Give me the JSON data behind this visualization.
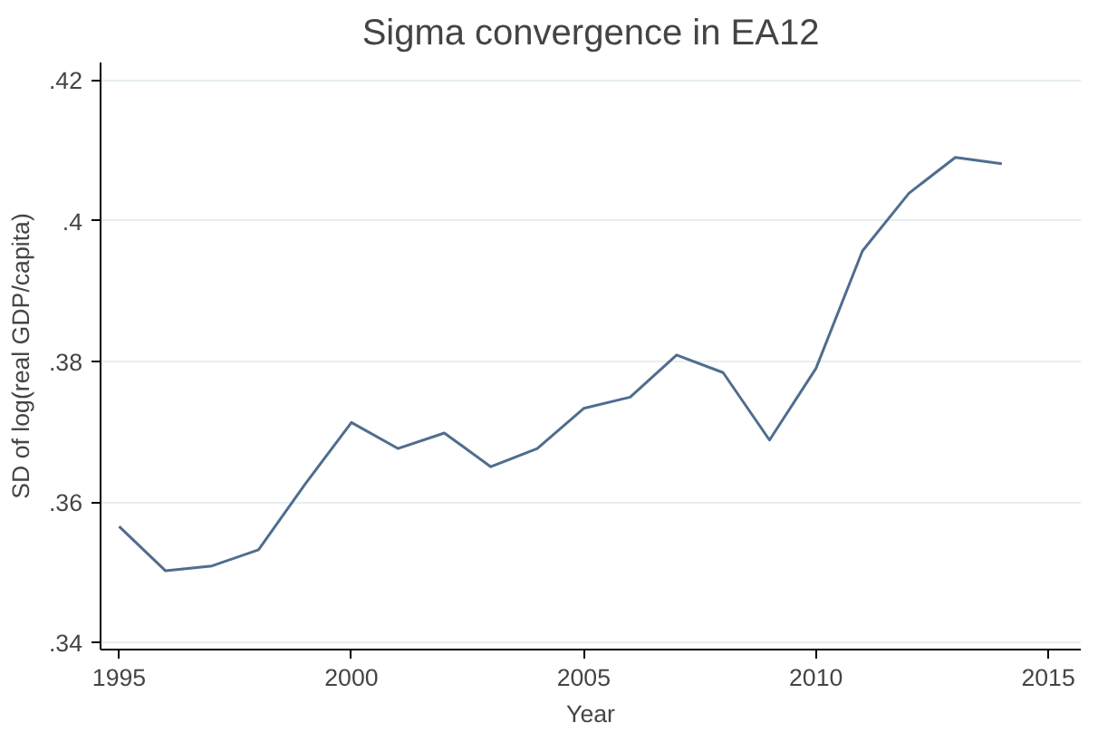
{
  "chart_data": {
    "type": "line",
    "title": "Sigma convergence in EA12",
    "xlabel": "Year",
    "ylabel": "SD of log(real GDP/capita)",
    "x": [
      1995,
      1996,
      1997,
      1998,
      1999,
      2000,
      2001,
      2002,
      2003,
      2004,
      2005,
      2006,
      2007,
      2008,
      2009,
      2010,
      2011,
      2012,
      2013,
      2014
    ],
    "series": [
      {
        "color": "#4f6d8e",
        "values": [
          0.3565,
          0.3502,
          0.3509,
          0.3532,
          0.3625,
          0.3713,
          0.3676,
          0.3698,
          0.365,
          0.3676,
          0.3733,
          0.3749,
          0.3809,
          0.3784,
          0.3688,
          0.379,
          0.3957,
          0.4039,
          0.409,
          0.4081
        ]
      }
    ],
    "xlim": [
      1994.6,
      2015.7
    ],
    "ylim": [
      0.339,
      0.4225
    ],
    "xticks": [
      1995,
      2000,
      2005,
      2010,
      2015
    ],
    "yticks": [
      {
        "value": 0.34,
        "label": ".34"
      },
      {
        "value": 0.36,
        "label": ".36"
      },
      {
        "value": 0.38,
        "label": ".38"
      },
      {
        "value": 0.4,
        "label": ".4"
      },
      {
        "value": 0.42,
        "label": ".42"
      }
    ],
    "grid": "y",
    "marker": "none",
    "line_style": "solid"
  }
}
